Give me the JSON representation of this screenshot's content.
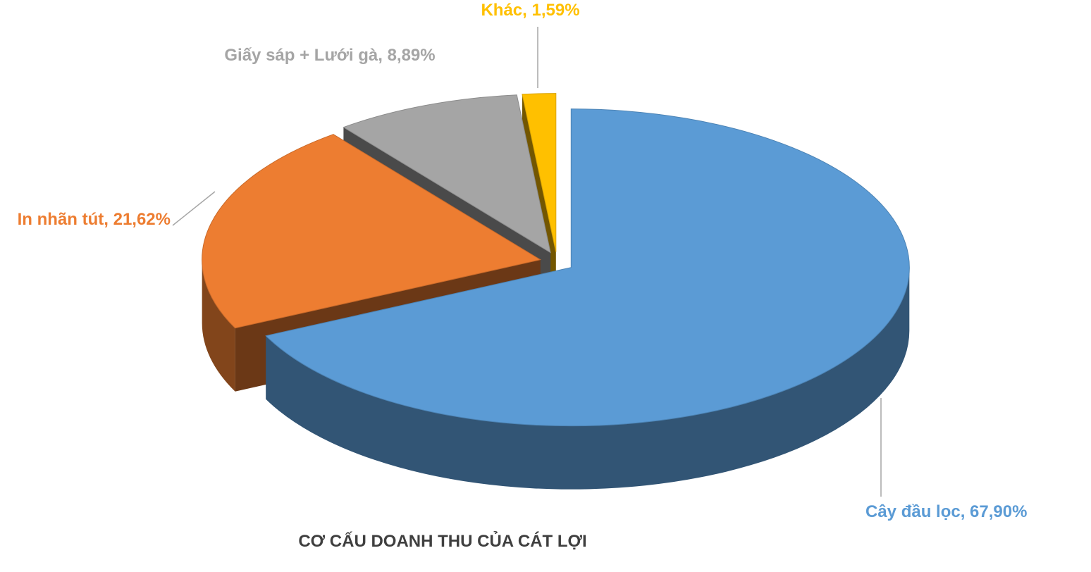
{
  "chart_data": {
    "type": "pie",
    "title": "CƠ CẤU DOANH THU CỦA CÁT LỢI",
    "values": [
      67.9,
      21.62,
      8.89,
      1.59
    ],
    "value_labels": [
      "Cây đầu lọc, 67,90%",
      "In nhãn tút, 21,62%",
      "Giấy sáp + Lưới gà, 8,89%",
      "Khác, 1,59%"
    ],
    "colors": [
      "#5b9bd5",
      "#ed7d31",
      "#a5a5a5",
      "#ffc000"
    ]
  }
}
